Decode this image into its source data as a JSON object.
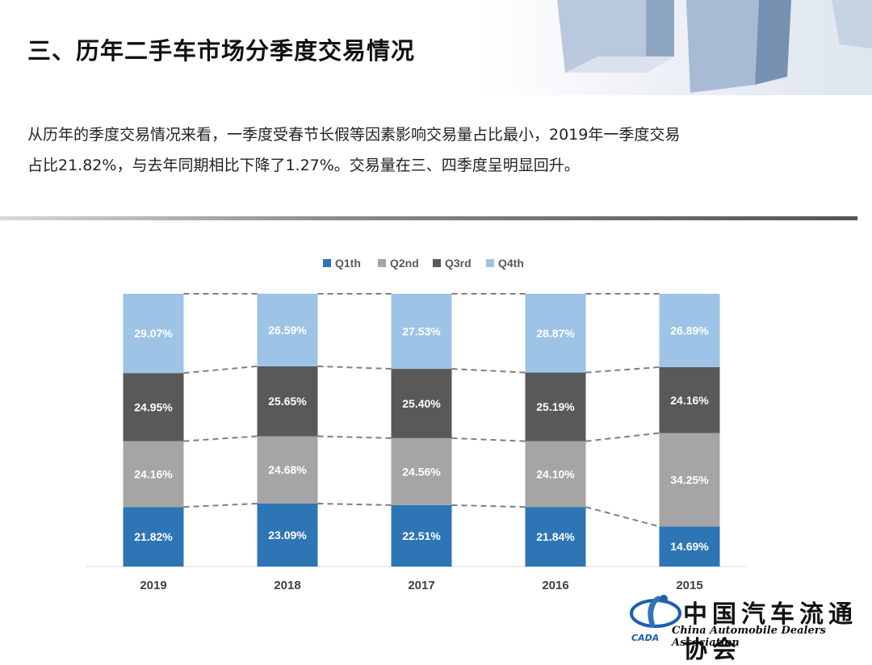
{
  "page": {
    "title": "三、历年二手车市场分季度交易情况",
    "intro_lines": [
      "从历年的季度交易情况来看，一季度受春节长假等因素影响交易量占比最小，2019年一季度交易",
      "占比21.82%，与去年同期相比下降了1.27%。交易量在三、四季度呈明显回升。"
    ]
  },
  "logo": {
    "name_cn": "中国汽车流通协会",
    "name_en": "China Automobile Dealers Association",
    "abbr": "CADA"
  },
  "chart_data": {
    "type": "bar",
    "stacked": true,
    "percent_stacked": true,
    "categories": [
      "2019",
      "2018",
      "2017",
      "2016",
      "2015"
    ],
    "series": [
      {
        "name": "Q1th",
        "color": "#2e75b6",
        "values": [
          21.82,
          23.09,
          22.51,
          21.84,
          14.69
        ]
      },
      {
        "name": "Q2nd",
        "color": "#a5a5a5",
        "values": [
          24.16,
          24.68,
          24.56,
          24.1,
          34.25
        ]
      },
      {
        "name": "Q3rd",
        "color": "#595959",
        "values": [
          24.95,
          25.65,
          25.4,
          25.19,
          24.16
        ]
      },
      {
        "name": "Q4th",
        "color": "#9dc3e6",
        "values": [
          29.07,
          26.59,
          27.53,
          28.87,
          26.89
        ]
      }
    ],
    "data_labels": [
      [
        "21.82%",
        "23.09%",
        "22.51%",
        "21.84%",
        "14.69%"
      ],
      [
        "24.16%",
        "24.68%",
        "24.56%",
        "24.10%",
        "34.25%"
      ],
      [
        "24.95%",
        "25.65%",
        "25.40%",
        "25.19%",
        "24.16%"
      ],
      [
        "29.07%",
        "26.59%",
        "27.53%",
        "28.87%",
        "26.89%"
      ]
    ],
    "ylim": [
      0,
      100
    ],
    "legend_position": "top",
    "series_lines": "dashed",
    "grid": false
  }
}
